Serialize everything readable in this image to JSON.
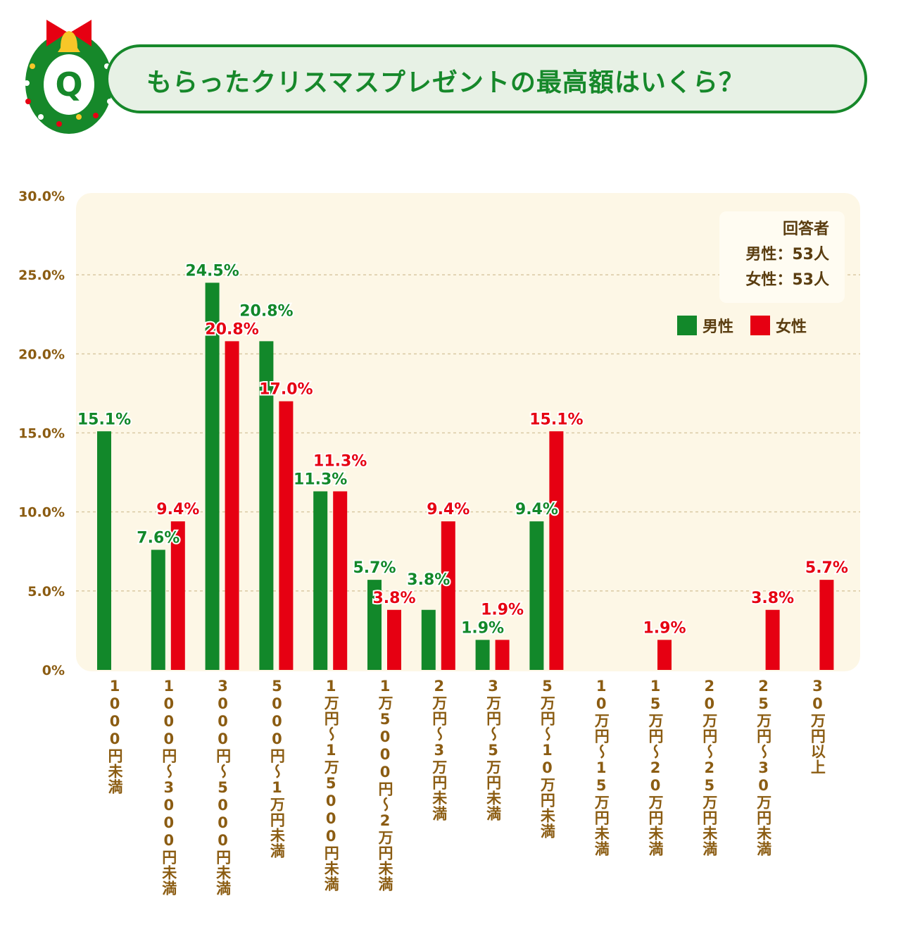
{
  "header": {
    "badge_letter": "Q",
    "title": "もらったクリスマスプレゼントの最高額はいくら？"
  },
  "respondents": {
    "heading": "回答者",
    "male": "男性：53人",
    "female": "女性：53人"
  },
  "colors": {
    "male": "#12882a",
    "female": "#e60012",
    "axis_text": "#8b5c12",
    "plot_bg": "#fdf7e6"
  },
  "chart_data": {
    "type": "bar",
    "title": "",
    "xlabel": "",
    "ylabel": "",
    "ylim": [
      0,
      30
    ],
    "yticks": [
      "0%",
      "5.0%",
      "10.0%",
      "15.0%",
      "20.0%",
      "25.0%",
      "30.0%"
    ],
    "grid": true,
    "legend_position": "top-right",
    "categories": [
      "1000円未満",
      "1000円～3000円未満",
      "3000円～5000円未満",
      "5000円～1万円未満",
      "1万円～1万5000円未満",
      "1万5000円～2万円未満",
      "2万円～3万円未満",
      "3万円～5万円未満",
      "5万円～10万円未満",
      "10万円～15万円未満",
      "15万円～20万円未満",
      "20万円～25万円未満",
      "25万円～30万円未満",
      "30万円以上"
    ],
    "series": [
      {
        "name": "男性",
        "values": [
          15.1,
          7.6,
          24.5,
          20.8,
          11.3,
          5.7,
          3.8,
          1.9,
          9.4,
          0,
          0,
          0,
          0,
          0
        ],
        "labels": [
          "15.1%",
          "7.6%",
          "24.5%",
          "20.8%",
          "11.3%",
          "5.7%",
          "3.8%",
          "1.9%",
          "9.4%",
          "",
          "",
          "",
          "",
          ""
        ]
      },
      {
        "name": "女性",
        "values": [
          0,
          9.4,
          20.8,
          17.0,
          11.3,
          3.8,
          9.4,
          1.9,
          15.1,
          0,
          1.9,
          0,
          3.8,
          5.7
        ],
        "labels": [
          "",
          "9.4%",
          "20.8%",
          "17.0%",
          "11.3%",
          "3.8%",
          "9.4%",
          "1.9%",
          "15.1%",
          "",
          "1.9%",
          "",
          "3.8%",
          "5.7%"
        ]
      }
    ]
  }
}
